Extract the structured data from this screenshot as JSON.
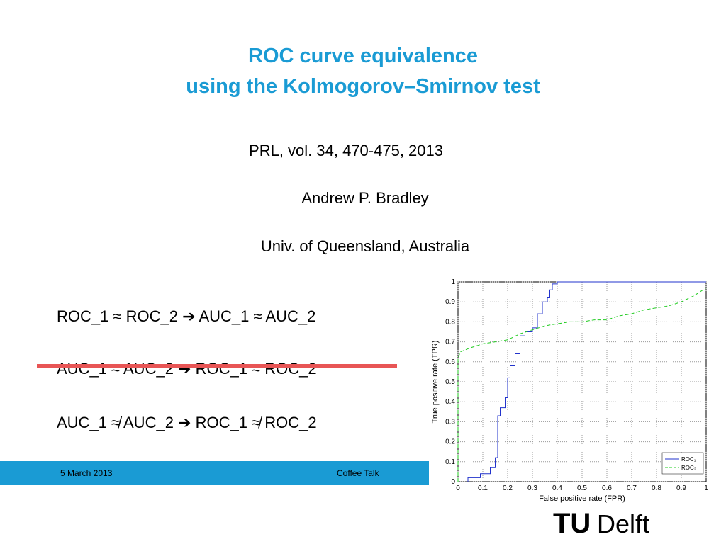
{
  "slide": {
    "title": [
      "ROC curve equivalence",
      "using the Kolmogorov–Smirnov test"
    ],
    "reference": "PRL, vol. 34, 470-475, 2013",
    "author": "Andrew P. Bradley",
    "affiliation": "Univ. of Queensland, Australia",
    "statements": [
      "ROC_1 ≈ ROC_2 ➔ AUC_1 ≈ AUC_2",
      "AUC_1 ≈ AUC_2 ➔ ROC_1 ≈ ROC_2",
      "AUC_1 ≉ AUC_2 ➔ ROC_1 ≉ ROC_2"
    ],
    "footer_date": "5 March 2013",
    "footer_title": "Coffee Talk",
    "logo": [
      "TU",
      "Delft"
    ]
  },
  "chart_data": {
    "type": "line",
    "x_label": "False positive rate (FPR)",
    "y_label": "True positive rate (TPR)",
    "xlim": [
      0,
      1
    ],
    "ylim": [
      0,
      1
    ],
    "xticks": [
      0,
      0.1,
      0.2,
      0.3,
      0.4,
      0.5,
      0.6,
      0.7,
      0.8,
      0.9,
      1
    ],
    "yticks": [
      0,
      0.1,
      0.2,
      0.3,
      0.4,
      0.5,
      0.6,
      0.7,
      0.8,
      0.9,
      1
    ],
    "grid": true,
    "legend": "lower right",
    "series": [
      {
        "name": "ROC₁",
        "color": "#2233cc",
        "dash": "solid",
        "x": [
          0.04,
          0.04,
          0.09,
          0.09,
          0.13,
          0.13,
          0.15,
          0.15,
          0.16,
          0.16,
          0.17,
          0.17,
          0.19,
          0.19,
          0.2,
          0.2,
          0.21,
          0.21,
          0.23,
          0.23,
          0.25,
          0.25,
          0.27,
          0.27,
          0.3,
          0.3,
          0.32,
          0.32,
          0.34,
          0.34,
          0.36,
          0.36,
          0.37,
          0.37,
          0.38,
          0.38,
          0.4,
          0.4,
          1
        ],
        "values": [
          0,
          0.02,
          0.02,
          0.04,
          0.04,
          0.07,
          0.07,
          0.12,
          0.12,
          0.33,
          0.33,
          0.37,
          0.37,
          0.42,
          0.42,
          0.52,
          0.52,
          0.58,
          0.58,
          0.64,
          0.64,
          0.73,
          0.73,
          0.75,
          0.75,
          0.77,
          0.77,
          0.84,
          0.84,
          0.9,
          0.9,
          0.92,
          0.92,
          0.96,
          0.96,
          0.99,
          0.99,
          1,
          1
        ]
      },
      {
        "name": "ROC₂",
        "color": "#22cc22",
        "dash": "dashed",
        "x": [
          0,
          0,
          0.01,
          0.05,
          0.1,
          0.15,
          0.2,
          0.25,
          0.3,
          0.35,
          0.4,
          0.45,
          0.5,
          0.55,
          0.6,
          0.65,
          0.7,
          0.75,
          0.8,
          0.85,
          0.9,
          0.95,
          1
        ],
        "values": [
          0,
          0.62,
          0.65,
          0.67,
          0.69,
          0.7,
          0.71,
          0.74,
          0.76,
          0.78,
          0.79,
          0.8,
          0.8,
          0.81,
          0.81,
          0.83,
          0.84,
          0.86,
          0.87,
          0.88,
          0.9,
          0.93,
          0.97
        ]
      }
    ]
  }
}
